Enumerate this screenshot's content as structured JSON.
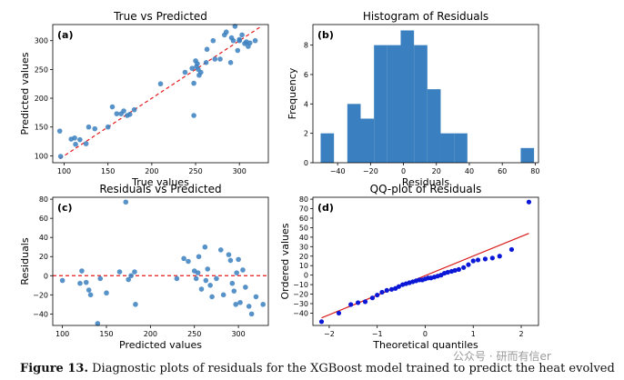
{
  "caption": {
    "label": "Figure 13.",
    "text": "Diagnostic plots of residuals for the XGBoost model trained to predict the heat evolved"
  },
  "watermark": "公众号 · 研而有信er",
  "colors": {
    "point": "#3a7fbf",
    "bar": "#3a7fbf",
    "refline": "#e41a1c",
    "qqpoint": "#0a17d6",
    "qqline": "#d81b1b"
  },
  "chart_data": [
    {
      "type": "scatter",
      "panel": "(a)",
      "title": "True vs Predicted",
      "xlabel": "True values",
      "ylabel": "Predicted values",
      "xlim": [
        87,
        333
      ],
      "ylim": [
        88,
        328
      ],
      "xticks": [
        100,
        150,
        200,
        250,
        300
      ],
      "yticks": [
        100,
        150,
        200,
        250,
        300
      ],
      "reference_line": {
        "style": "dashed",
        "points": [
          [
            95,
            95
          ],
          [
            325,
            325
          ]
        ]
      },
      "points": [
        [
          95,
          143
        ],
        [
          96,
          99
        ],
        [
          108,
          129
        ],
        [
          112,
          131
        ],
        [
          113,
          120
        ],
        [
          118,
          128
        ],
        [
          125,
          121
        ],
        [
          128,
          150
        ],
        [
          135,
          147
        ],
        [
          150,
          150
        ],
        [
          155,
          185
        ],
        [
          160,
          173
        ],
        [
          165,
          173
        ],
        [
          168,
          178
        ],
        [
          172,
          170
        ],
        [
          175,
          172
        ],
        [
          180,
          180
        ],
        [
          210,
          225
        ],
        [
          238,
          245
        ],
        [
          246,
          252
        ],
        [
          248,
          226
        ],
        [
          248,
          170
        ],
        [
          250,
          265
        ],
        [
          251,
          255
        ],
        [
          252,
          260
        ],
        [
          253,
          250
        ],
        [
          254,
          240
        ],
        [
          256,
          245
        ],
        [
          262,
          262
        ],
        [
          263,
          285
        ],
        [
          270,
          300
        ],
        [
          272,
          268
        ],
        [
          278,
          268
        ],
        [
          283,
          310
        ],
        [
          285,
          315
        ],
        [
          290,
          262
        ],
        [
          291,
          305
        ],
        [
          293,
          300
        ],
        [
          295,
          325
        ],
        [
          298,
          283
        ],
        [
          300,
          302
        ],
        [
          303,
          310
        ],
        [
          306,
          295
        ],
        [
          308,
          298
        ],
        [
          310,
          290
        ],
        [
          312,
          296
        ],
        [
          318,
          300
        ],
        [
          300,
          300
        ]
      ]
    },
    {
      "type": "bar",
      "panel": "(b)",
      "title": "Histogram of Residuals",
      "xlabel": "Residuals",
      "ylabel": "Frequency",
      "xlim": [
        -55,
        82
      ],
      "ylim": [
        0,
        9.4
      ],
      "xticks": [
        -40,
        -20,
        0,
        20,
        40,
        60,
        80
      ],
      "yticks": [
        0,
        2,
        4,
        6,
        8
      ],
      "bins": [
        [
          -50.3,
          -42.2,
          2
        ],
        [
          -42.2,
          -34.1,
          0
        ],
        [
          -34.1,
          -26.0,
          4
        ],
        [
          -26.0,
          -17.9,
          3
        ],
        [
          -17.9,
          -9.8,
          8
        ],
        [
          -9.8,
          -1.7,
          8
        ],
        [
          -1.7,
          6.4,
          9
        ],
        [
          6.4,
          14.5,
          8
        ],
        [
          14.5,
          22.6,
          5
        ],
        [
          22.6,
          30.7,
          2
        ],
        [
          30.7,
          38.8,
          2
        ],
        [
          38.8,
          46.9,
          0
        ],
        [
          46.9,
          55.0,
          0
        ],
        [
          55.0,
          63.1,
          0
        ],
        [
          63.1,
          71.2,
          0
        ],
        [
          71.2,
          79.3,
          1
        ]
      ]
    },
    {
      "type": "scatter",
      "panel": "(c)",
      "title": "Residuals vs Predicted",
      "xlabel": "Predicted values",
      "ylabel": "Residuals",
      "xlim": [
        89,
        334
      ],
      "ylim": [
        -52,
        82
      ],
      "xticks": [
        100,
        150,
        200,
        250,
        300
      ],
      "yticks": [
        -40,
        -20,
        0,
        20,
        40,
        60,
        80
      ],
      "reference_line": {
        "style": "dashed",
        "y": 0
      },
      "points": [
        [
          100,
          -5
        ],
        [
          120,
          -8
        ],
        [
          122,
          5
        ],
        [
          127,
          -7
        ],
        [
          130,
          -15
        ],
        [
          132,
          -20
        ],
        [
          140,
          -50
        ],
        [
          143,
          -3
        ],
        [
          150,
          -18
        ],
        [
          165,
          4
        ],
        [
          172,
          77
        ],
        [
          175,
          -4
        ],
        [
          178,
          0
        ],
        [
          182,
          4
        ],
        [
          183,
          -30
        ],
        [
          230,
          -3
        ],
        [
          238,
          18
        ],
        [
          243,
          15
        ],
        [
          250,
          5
        ],
        [
          252,
          -3
        ],
        [
          254,
          3
        ],
        [
          255,
          20
        ],
        [
          258,
          -14
        ],
        [
          262,
          30
        ],
        [
          263,
          -5
        ],
        [
          265,
          7
        ],
        [
          268,
          -10
        ],
        [
          270,
          -22
        ],
        [
          275,
          -3
        ],
        [
          280,
          27
        ],
        [
          283,
          -20
        ],
        [
          289,
          22
        ],
        [
          291,
          16
        ],
        [
          293,
          -8
        ],
        [
          295,
          -16
        ],
        [
          297,
          -30
        ],
        [
          298,
          3
        ],
        [
          300,
          17
        ],
        [
          302,
          -28
        ],
        [
          305,
          6
        ],
        [
          308,
          -12
        ],
        [
          312,
          -32
        ],
        [
          315,
          -40
        ],
        [
          320,
          -22
        ],
        [
          328,
          -30
        ]
      ]
    },
    {
      "type": "scatter",
      "panel": "(d)",
      "title": "QQ-plot of Residuals",
      "xlabel": "Theoretical quantiles",
      "ylabel": "Ordered values",
      "xlim": [
        -2.34,
        2.36
      ],
      "ylim": [
        -53,
        82
      ],
      "xticks": [
        -2,
        -1,
        0,
        1,
        2
      ],
      "yticks": [
        -40,
        -30,
        -20,
        -10,
        0,
        10,
        20,
        30,
        40,
        50,
        60,
        70,
        80
      ],
      "reference_line": {
        "style": "solid",
        "points": [
          [
            -2.16,
            -45
          ],
          [
            2.16,
            44
          ]
        ]
      },
      "points": [
        [
          -2.16,
          -49
        ],
        [
          -1.8,
          -40
        ],
        [
          -1.55,
          -31
        ],
        [
          -1.4,
          -29
        ],
        [
          -1.25,
          -28
        ],
        [
          -1.1,
          -24
        ],
        [
          -1.0,
          -21
        ],
        [
          -0.9,
          -18
        ],
        [
          -0.8,
          -16
        ],
        [
          -0.7,
          -15
        ],
        [
          -0.62,
          -14
        ],
        [
          -0.55,
          -12
        ],
        [
          -0.47,
          -10
        ],
        [
          -0.4,
          -9
        ],
        [
          -0.33,
          -8
        ],
        [
          -0.26,
          -7
        ],
        [
          -0.19,
          -6
        ],
        [
          -0.12,
          -5
        ],
        [
          -0.06,
          -5
        ],
        [
          0.0,
          -4
        ],
        [
          0.06,
          -3
        ],
        [
          0.12,
          -3
        ],
        [
          0.19,
          -2
        ],
        [
          0.26,
          -1
        ],
        [
          0.33,
          0
        ],
        [
          0.4,
          2
        ],
        [
          0.47,
          3
        ],
        [
          0.55,
          4
        ],
        [
          0.62,
          5
        ],
        [
          0.7,
          6
        ],
        [
          0.8,
          8
        ],
        [
          0.9,
          11
        ],
        [
          1.0,
          15
        ],
        [
          1.1,
          16
        ],
        [
          1.25,
          17
        ],
        [
          1.4,
          18
        ],
        [
          1.55,
          20
        ],
        [
          1.8,
          27
        ],
        [
          2.16,
          77
        ]
      ]
    }
  ]
}
